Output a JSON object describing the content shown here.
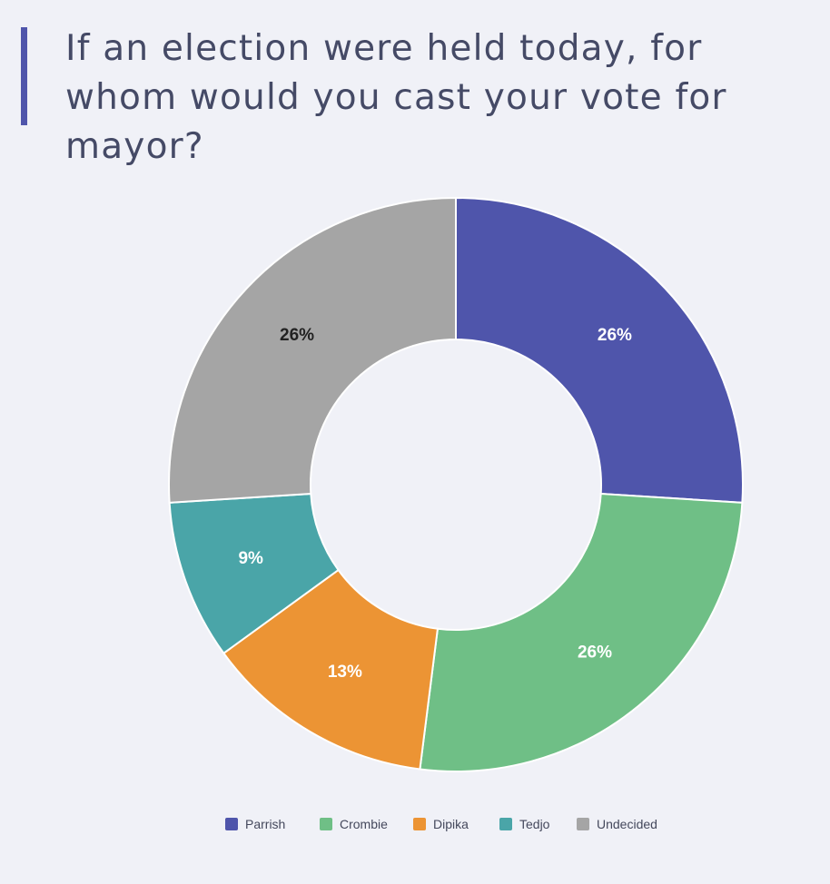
{
  "title": "If an election were held today, for whom would you cast your vote for mayor?",
  "colors": {
    "accent_bar": "#4f55ab",
    "background": "#f0f1f7",
    "title_text": "#454a66"
  },
  "chart_data": {
    "type": "pie",
    "style": "donut",
    "title": "If an election were held today, for whom would you cast your vote for mayor?",
    "unit": "%",
    "categories": [
      "Parrish",
      "Crombie",
      "Dipika",
      "Tedjo",
      "Undecided"
    ],
    "values": [
      26,
      26,
      13,
      9,
      26
    ],
    "labels": [
      "26%",
      "26%",
      "13%",
      "9%",
      "26%"
    ],
    "colors": [
      "#4f55ab",
      "#6fbf86",
      "#ec9434",
      "#4aa5a8",
      "#a5a5a5"
    ],
    "label_colors": [
      "#ffffff",
      "#ffffff",
      "#ffffff",
      "#ffffff",
      "#222222"
    ],
    "start_angle_deg": 0,
    "direction": "clockwise",
    "legend_position": "bottom"
  }
}
